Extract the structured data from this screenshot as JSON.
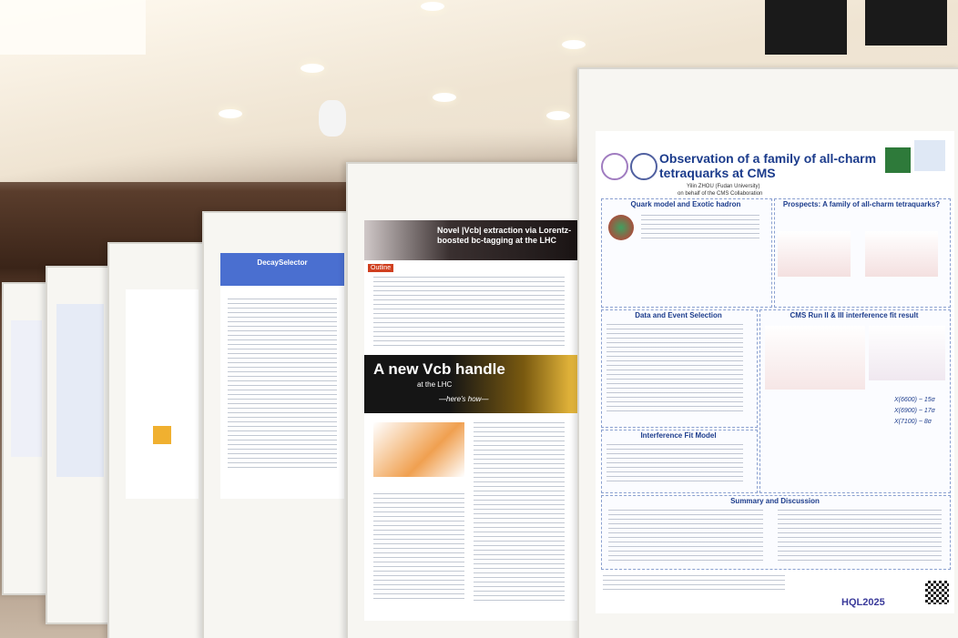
{
  "main_poster": {
    "title": "Observation of a family of all-charm tetraquarks at CMS",
    "author": "Yilin ZHOU (Fudan University)",
    "affiliation": "on behalf of the CMS Collaboration",
    "sections": [
      "Quark model and Exotic hadron",
      "Prospects: A family of all-charm tetraquarks?",
      "Data and Event Selection",
      "CMS Run II & III interference fit result",
      "Interference Fit Model",
      "Summary and Discussion"
    ],
    "results": [
      "X(6600) ~ 15σ",
      "X(6900) ~ 17σ",
      "X(7100) ~ 8σ"
    ],
    "footer": "HQL2025"
  },
  "middle_poster": {
    "title": "Novel |Vcb| extraction via Lorentz-boosted bc-tagging at the LHC",
    "section": "Outline",
    "banner": "A new Vcb handle",
    "banner_sub": "at the LHC",
    "banner_tag": "—here's how—"
  },
  "left_poster": {
    "title": "DecaySelector"
  }
}
